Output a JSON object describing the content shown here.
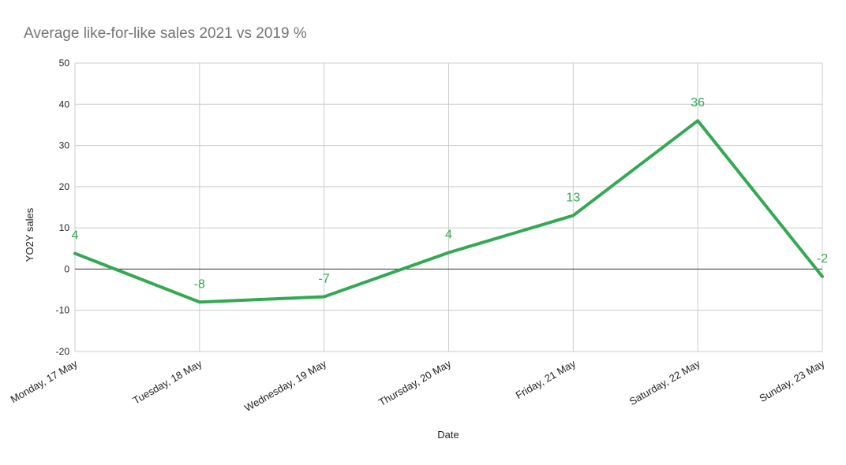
{
  "chart_data": {
    "type": "line",
    "title": "Average like-for-like sales 2021 vs 2019 %",
    "xlabel": "Date",
    "ylabel": "YO2Y sales",
    "ylim": [
      -20,
      50
    ],
    "yticks": [
      50,
      40,
      30,
      20,
      10,
      0,
      -10,
      -20
    ],
    "grid": true,
    "legend": "none",
    "categories": [
      "Monday, 17 May",
      "Tuesday, 18 May",
      "Wednesday, 19 May",
      "Thursday, 20 May",
      "Friday, 21 May",
      "Saturday, 22 May",
      "Sunday, 23 May"
    ],
    "series": [
      {
        "color": "#34a853",
        "values": [
          3.8,
          -8,
          -6.7,
          4,
          13,
          36,
          -1.8
        ],
        "labels": [
          "4",
          "-8",
          "-7",
          "4",
          "13",
          "36",
          "-2"
        ]
      }
    ]
  }
}
